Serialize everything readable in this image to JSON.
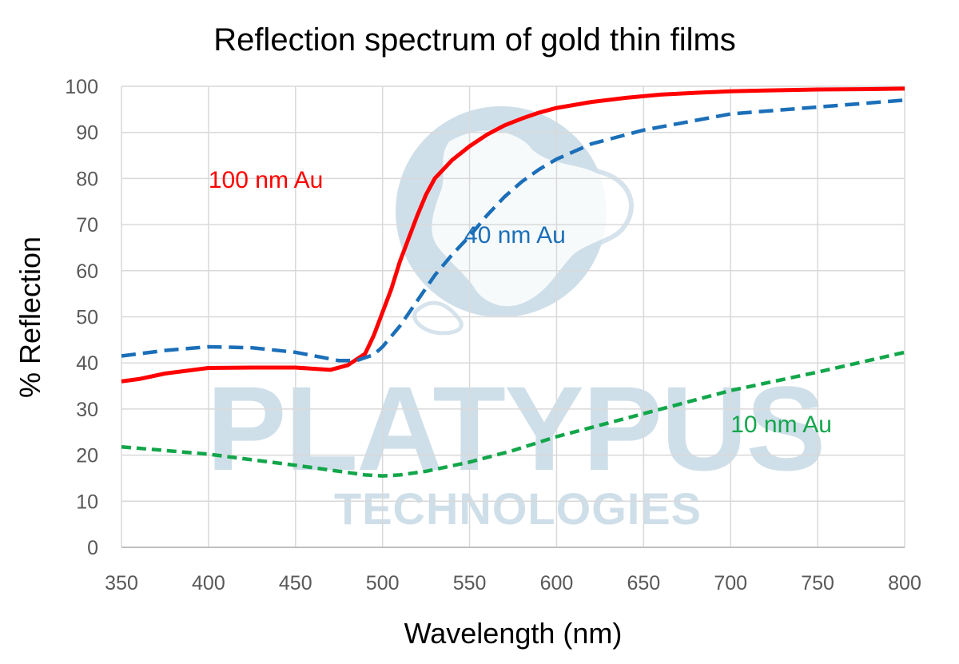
{
  "chart_data": {
    "type": "line",
    "title": "Reflection spectrum of gold thin films",
    "xlabel": "Wavelength (nm)",
    "ylabel": "% Reflection",
    "xlim": [
      350,
      800
    ],
    "ylim": [
      0,
      100
    ],
    "xticks": [
      350,
      400,
      450,
      500,
      550,
      600,
      650,
      700,
      750,
      800
    ],
    "yticks": [
      0,
      10,
      20,
      30,
      40,
      50,
      60,
      70,
      80,
      90,
      100
    ],
    "grid": true,
    "legend": "none",
    "series": [
      {
        "name": "100 nm Au",
        "color": "#ff0000",
        "dash": "solid",
        "label_at": [
          400,
          78
        ],
        "x": [
          350,
          360,
          375,
          400,
          425,
          450,
          470,
          480,
          490,
          495,
          500,
          505,
          510,
          515,
          520,
          525,
          530,
          540,
          550,
          560,
          570,
          580,
          590,
          600,
          620,
          640,
          660,
          680,
          700,
          720,
          750,
          780,
          800
        ],
        "y": [
          36,
          36.5,
          37.7,
          38.9,
          39,
          39,
          38.5,
          39.5,
          42,
          46,
          51,
          56,
          62,
          67,
          72,
          76.5,
          80,
          84,
          87,
          89.5,
          91.5,
          93,
          94.3,
          95.3,
          96.6,
          97.5,
          98.2,
          98.6,
          98.9,
          99.1,
          99.3,
          99.4,
          99.5
        ]
      },
      {
        "name": "40 nm Au",
        "color": "#1b6fb8",
        "dash": "dashed",
        "label_at": [
          547,
          66
        ],
        "x": [
          350,
          375,
          400,
          425,
          450,
          475,
          485,
          495,
          500,
          510,
          520,
          530,
          540,
          550,
          560,
          570,
          580,
          590,
          600,
          620,
          650,
          700,
          750,
          800
        ],
        "y": [
          41.5,
          42.7,
          43.5,
          43.3,
          42.3,
          40.5,
          40.5,
          41.8,
          43.5,
          48,
          53.5,
          59,
          63.5,
          67.5,
          72,
          76,
          79.3,
          82,
          84.2,
          87.5,
          90.5,
          94,
          95.5,
          97
        ]
      },
      {
        "name": "10 nm Au",
        "color": "#12a64a",
        "dash": "dashed",
        "label_at": [
          700,
          25
        ],
        "x": [
          350,
          375,
          400,
          425,
          450,
          475,
          490,
          500,
          510,
          525,
          550,
          575,
          600,
          650,
          700,
          750,
          800
        ],
        "y": [
          21.8,
          21,
          20.2,
          19,
          17.8,
          16.5,
          15.7,
          15.5,
          15.7,
          16.5,
          18.5,
          21,
          24,
          29,
          34,
          38,
          42.3
        ]
      }
    ]
  },
  "watermark": {
    "brand": "PLATYPUS",
    "subtitle": "TECHNOLOGIES"
  }
}
